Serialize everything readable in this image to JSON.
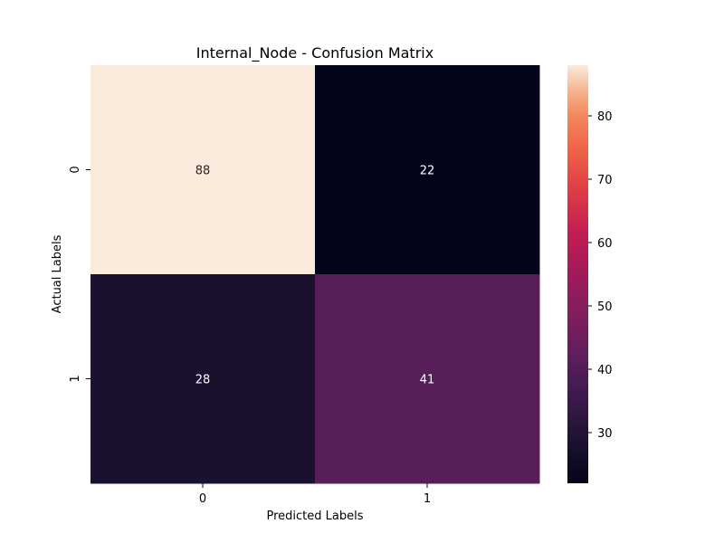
{
  "chart_data": {
    "type": "heatmap",
    "title": "Internal_Node - Confusion Matrix",
    "xlabel": "Predicted Labels",
    "ylabel": "Actual Labels",
    "x_categories": [
      "0",
      "1"
    ],
    "y_categories": [
      "0",
      "1"
    ],
    "values": [
      [
        88,
        22
      ],
      [
        28,
        41
      ]
    ],
    "colormap": "rocket",
    "colorbar": {
      "range": [
        22,
        88
      ],
      "ticks": [
        30,
        40,
        50,
        60,
        70,
        80
      ]
    },
    "annotation_light_color": "#ffffff",
    "annotation_dark_color": "#262626"
  }
}
